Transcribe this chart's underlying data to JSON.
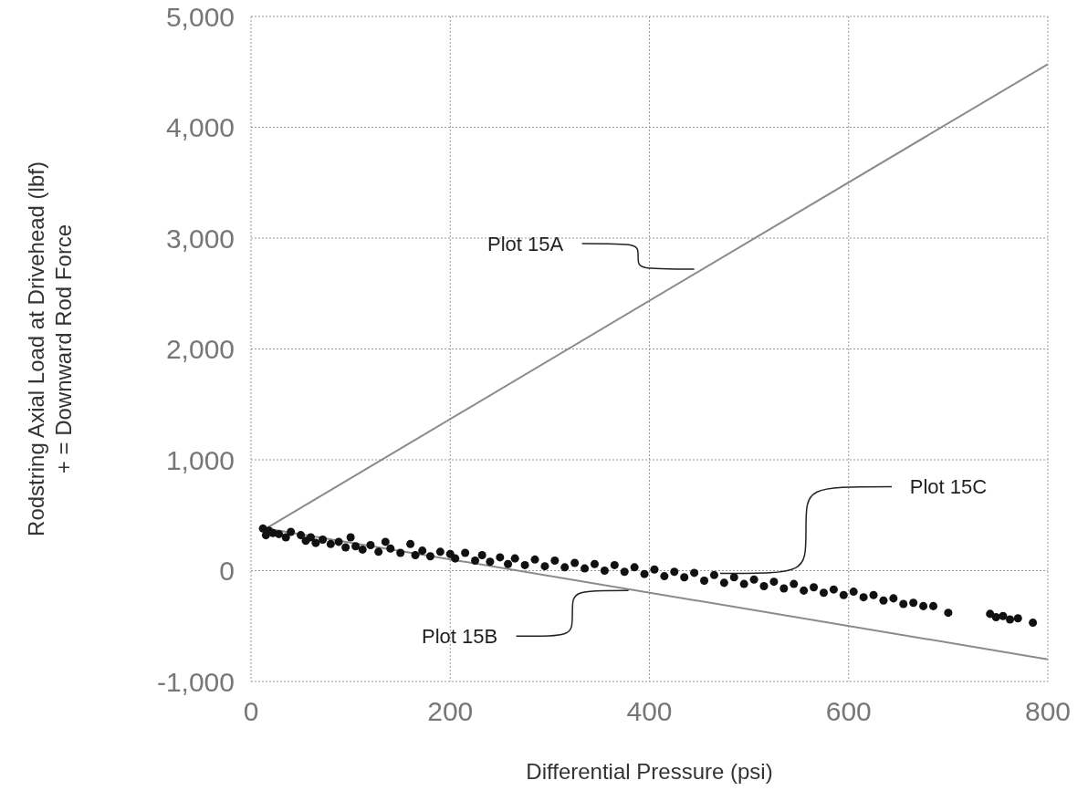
{
  "chart_data": {
    "type": "scatter",
    "xlabel": "Differential Pressure (psi)",
    "ylabel": "Rodstring Axial Load at Drivehead (lbf)\n+ = Downward Rod Force",
    "xlim": [
      0,
      800
    ],
    "xticks": [
      0,
      200,
      400,
      600,
      800
    ],
    "ylim": [
      -1000,
      5000
    ],
    "yticks": [
      {
        "value": -1000,
        "label": "-1,000"
      },
      0,
      {
        "value": 1000,
        "label": "1,000"
      },
      {
        "value": 2000,
        "label": "2,000"
      },
      {
        "value": 3000,
        "label": "3,000"
      },
      {
        "value": 4000,
        "label": "4,000"
      },
      {
        "value": 5000,
        "label": "5,000"
      }
    ],
    "grid": true,
    "marker": "circle",
    "series": [
      {
        "type": "line",
        "marker": "none",
        "color": "#8a8a8a",
        "x": [
          15,
          800
        ],
        "values": [
          380,
          4570
        ]
      },
      {
        "type": "line",
        "marker": "none",
        "color": "#8a8a8a",
        "x": [
          15,
          800
        ],
        "values": [
          380,
          -800
        ]
      },
      {
        "color": "#111111",
        "x": [
          12,
          15,
          18,
          22,
          28,
          35,
          40,
          50,
          55,
          60,
          65,
          72,
          80,
          88,
          95,
          100,
          105,
          112,
          120,
          128,
          135,
          140,
          150,
          160,
          165,
          172,
          180,
          190,
          200,
          205,
          215,
          225,
          232,
          240,
          250,
          258,
          265,
          275,
          285,
          295,
          305,
          315,
          325,
          335,
          345,
          355,
          365,
          375,
          385,
          395,
          405,
          415,
          425,
          435,
          445,
          455,
          465,
          475,
          485,
          495,
          505,
          515,
          525,
          535,
          545,
          555,
          565,
          575,
          585,
          595,
          605,
          615,
          625,
          635,
          645,
          655,
          665,
          675,
          685,
          700,
          742,
          748,
          755,
          762,
          770,
          785
        ],
        "values": [
          380,
          320,
          360,
          340,
          330,
          300,
          350,
          320,
          270,
          300,
          250,
          280,
          240,
          260,
          210,
          300,
          220,
          190,
          230,
          170,
          260,
          200,
          160,
          240,
          140,
          180,
          130,
          170,
          150,
          110,
          160,
          90,
          140,
          80,
          120,
          60,
          110,
          50,
          100,
          40,
          90,
          30,
          70,
          20,
          60,
          0,
          50,
          -10,
          30,
          -30,
          10,
          -50,
          -10,
          -60,
          -20,
          -90,
          -40,
          -110,
          -60,
          -120,
          -80,
          -140,
          -100,
          -160,
          -120,
          -180,
          -150,
          -200,
          -170,
          -220,
          -190,
          -240,
          -220,
          -270,
          -250,
          -300,
          -290,
          -320,
          -320,
          -380,
          -390,
          -420,
          -410,
          -440,
          -430,
          -470
        ]
      }
    ],
    "annotations": [
      {
        "text": "Plot 15A",
        "x": 445,
        "y": 2720
      },
      {
        "text": "Plot 15C",
        "x": 471,
        "y": -25
      },
      {
        "text": "Plot 15B",
        "x": 379,
        "y": -180
      }
    ]
  }
}
